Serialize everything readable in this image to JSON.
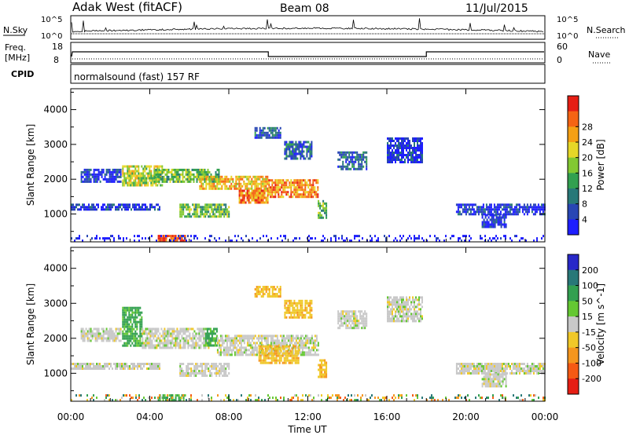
{
  "header": {
    "station": "Adak West (fitACF)",
    "beam": "Beam 08",
    "date": "11/Jul/2015"
  },
  "noise_panel": {
    "left_label": "N.Sky",
    "right_label": "N.Search",
    "tick_top": "10^5",
    "tick_bottom": "10^0"
  },
  "freq_panel": {
    "left_label": "Freq.",
    "unit": "[MHz]",
    "left_ticks": [
      "18",
      "8"
    ],
    "right_label": "Nave",
    "right_ticks": [
      "60",
      "0"
    ]
  },
  "cpid_panel": {
    "label": "CPID",
    "text": "normalsound (fast) 157 RF"
  },
  "x_axis": {
    "label": "Time UT",
    "ticks": [
      "00:00",
      "04:00",
      "08:00",
      "12:00",
      "16:00",
      "20:00",
      "00:00"
    ]
  },
  "chart_data": [
    {
      "type": "heatmap",
      "name": "power",
      "ylabel": "Slant Range [km]",
      "yticks": [
        "1000",
        "2000",
        "3000",
        "4000"
      ],
      "ylim": [
        200,
        4600
      ],
      "xlim": [
        0,
        24
      ],
      "colorbar": {
        "label": "Power [dB]",
        "ticks": [
          "4",
          "8",
          "12",
          "16",
          "20",
          "24",
          "28"
        ],
        "colors": [
          "#1e1eff",
          "#2846b4",
          "#287878",
          "#32a050",
          "#82c832",
          "#e6d728",
          "#f5a014",
          "#f56414",
          "#e61e14"
        ]
      },
      "echo_regions": [
        {
          "t": [
            0.0,
            4.5
          ],
          "range": [
            1100,
            1300
          ],
          "level": 1
        },
        {
          "t": [
            0.5,
            2.5
          ],
          "range": [
            1900,
            2300
          ],
          "level": 1
        },
        {
          "t": [
            2.6,
            4.6
          ],
          "range": [
            1800,
            2400
          ],
          "level": 5
        },
        {
          "t": [
            4.2,
            7.5
          ],
          "range": [
            1900,
            2300
          ],
          "level": 4
        },
        {
          "t": [
            6.5,
            10.0
          ],
          "range": [
            1700,
            2100
          ],
          "level": 6
        },
        {
          "t": [
            10.0,
            12.5
          ],
          "range": [
            1500,
            2000
          ],
          "level": 7
        },
        {
          "t": [
            8.5,
            10.0
          ],
          "range": [
            1300,
            1700
          ],
          "level": 7
        },
        {
          "t": [
            5.5,
            8.0
          ],
          "range": [
            900,
            1300
          ],
          "level": 4
        },
        {
          "t": [
            9.3,
            10.6
          ],
          "range": [
            3200,
            3500
          ],
          "level": 2
        },
        {
          "t": [
            10.8,
            12.2
          ],
          "range": [
            2600,
            3100
          ],
          "level": 2
        },
        {
          "t": [
            12.5,
            12.9
          ],
          "range": [
            900,
            1400
          ],
          "level": 4
        },
        {
          "t": [
            13.5,
            15.0
          ],
          "range": [
            2300,
            2800
          ],
          "level": 2
        },
        {
          "t": [
            16.0,
            17.8
          ],
          "range": [
            2500,
            3200
          ],
          "level": 1
        },
        {
          "t": [
            19.5,
            24.0
          ],
          "range": [
            1000,
            1300
          ],
          "level": 1
        },
        {
          "t": [
            20.8,
            22.0
          ],
          "range": [
            600,
            1000
          ],
          "level": 1
        },
        {
          "t": [
            4.4,
            5.8
          ],
          "range": [
            250,
            400
          ],
          "level": 8
        },
        {
          "t": [
            0.0,
            24.0
          ],
          "range": [
            250,
            400
          ],
          "level": 0
        }
      ]
    },
    {
      "type": "heatmap",
      "name": "velocity",
      "ylabel": "Slant Range [km]",
      "yticks": [
        "1000",
        "2000",
        "3000",
        "4000"
      ],
      "ylim": [
        200,
        4600
      ],
      "xlim": [
        0,
        24
      ],
      "colorbar": {
        "label": "Velocity [m s^-1]",
        "ticks": [
          "200",
          "100",
          "50",
          "15",
          "-15",
          "-50",
          "-100",
          "-200"
        ],
        "colors": [
          "#2828c8",
          "#287878",
          "#32a050",
          "#64c832",
          "#c8c8c8",
          "#f0c828",
          "#f5961e",
          "#f55a14",
          "#e61e14"
        ]
      },
      "echo_regions": [
        {
          "t": [
            0.0,
            4.5
          ],
          "range": [
            1100,
            1300
          ],
          "vel": 0
        },
        {
          "t": [
            0.5,
            2.5
          ],
          "range": [
            1900,
            2300
          ],
          "vel": 0
        },
        {
          "t": [
            2.6,
            3.6
          ],
          "range": [
            1800,
            2900
          ],
          "vel": 60
        },
        {
          "t": [
            3.6,
            7.0
          ],
          "range": [
            1700,
            2300
          ],
          "vel": 0
        },
        {
          "t": [
            6.8,
            7.4
          ],
          "range": [
            1800,
            2300
          ],
          "vel": 60
        },
        {
          "t": [
            7.4,
            12.5
          ],
          "range": [
            1500,
            2100
          ],
          "vel": 0
        },
        {
          "t": [
            9.5,
            11.5
          ],
          "range": [
            1300,
            1800
          ],
          "vel": -40
        },
        {
          "t": [
            5.5,
            8.0
          ],
          "range": [
            900,
            1300
          ],
          "vel": 0
        },
        {
          "t": [
            9.3,
            10.6
          ],
          "range": [
            3200,
            3500
          ],
          "vel": -40
        },
        {
          "t": [
            10.8,
            12.2
          ],
          "range": [
            2600,
            3100
          ],
          "vel": -40
        },
        {
          "t": [
            12.5,
            12.9
          ],
          "range": [
            900,
            1400
          ],
          "vel": -40
        },
        {
          "t": [
            13.5,
            15.0
          ],
          "range": [
            2300,
            2800
          ],
          "vel": 0
        },
        {
          "t": [
            16.0,
            17.8
          ],
          "range": [
            2500,
            3200
          ],
          "vel": 0
        },
        {
          "t": [
            19.5,
            24.0
          ],
          "range": [
            1000,
            1300
          ],
          "vel": 0
        },
        {
          "t": [
            20.8,
            22.0
          ],
          "range": [
            600,
            1000
          ],
          "vel": 0
        },
        {
          "t": [
            4.4,
            5.8
          ],
          "range": [
            250,
            400
          ],
          "vel": 60
        },
        {
          "t": [
            0.0,
            24.0
          ],
          "range": [
            250,
            400
          ],
          "vel": 0
        }
      ]
    }
  ]
}
